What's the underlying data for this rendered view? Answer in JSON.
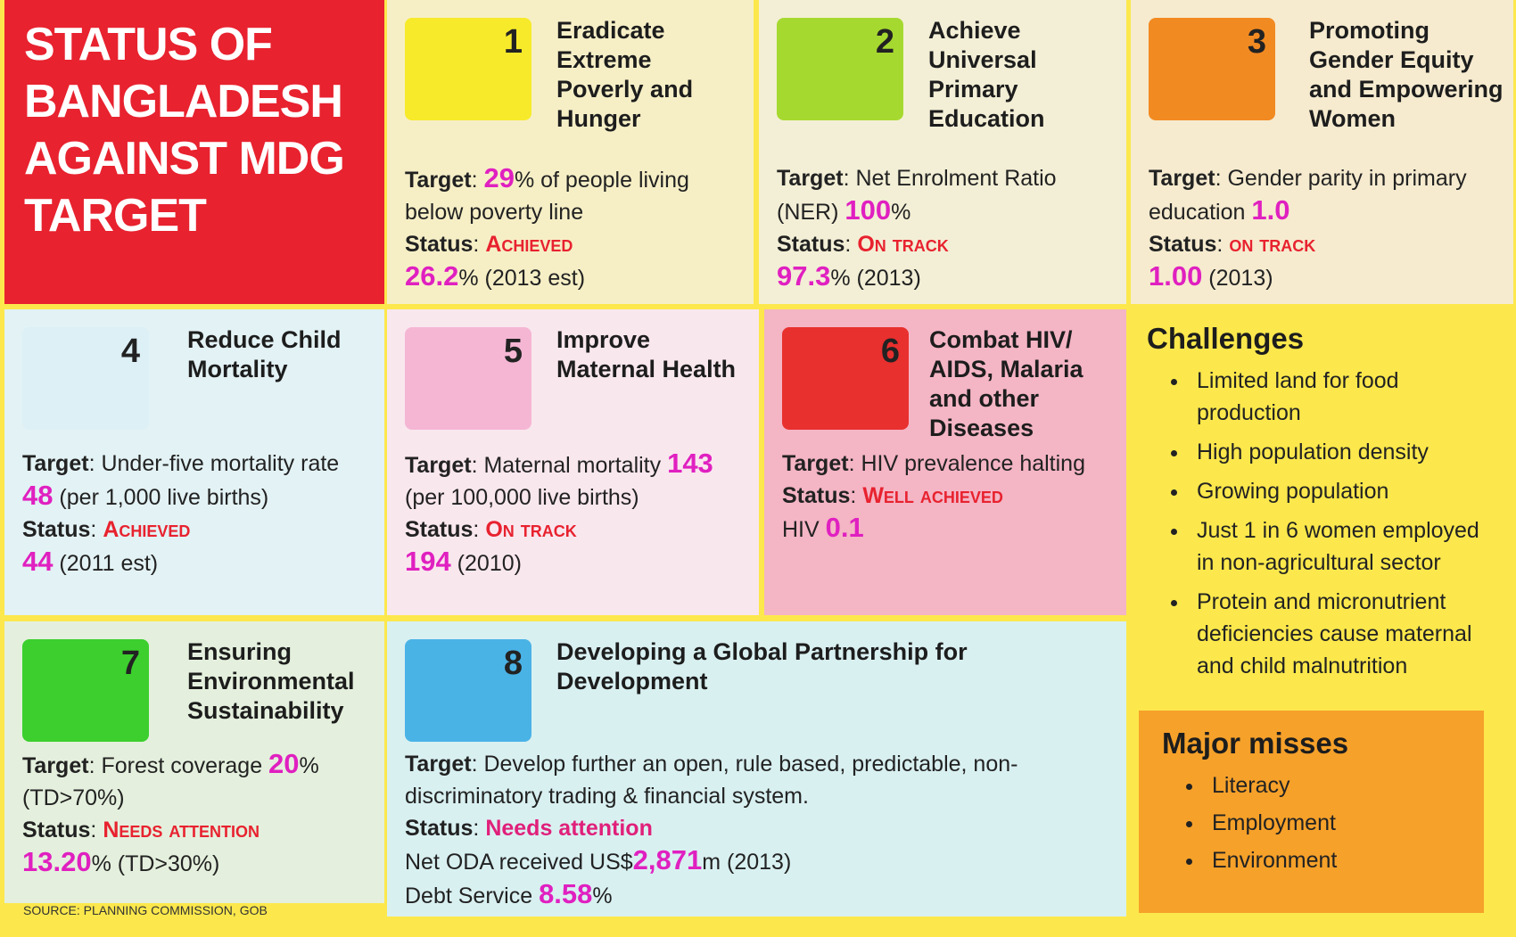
{
  "header": {
    "title": "STATUS OF BANGLADESH AGAINST MDG TARGET"
  },
  "goals": [
    {
      "number": 1,
      "title": "Eradicate Extreme Poverly and Hunger",
      "target": [
        "Target",
        ": ",
        "29",
        "% of people living below poverty line"
      ],
      "status": [
        "Status",
        ": ",
        "Achieved"
      ],
      "result": [
        [
          "26.2",
          "% (2013 est)"
        ]
      ]
    },
    {
      "number": 2,
      "title": "Achieve Universal Primary Education",
      "target": [
        "Target",
        ": Net Enrolment Ratio (NER) ",
        "100",
        "%"
      ],
      "status": [
        "Status",
        ": ",
        "On track"
      ],
      "result": [
        [
          "97.3",
          "% (2013)"
        ]
      ]
    },
    {
      "number": 3,
      "title": "Promoting Gender Equity and Empowering Women",
      "target": [
        "Target",
        ": Gender parity in primary education ",
        "1.0"
      ],
      "status": [
        "Status",
        ": ",
        "on track"
      ],
      "result": [
        [
          "1.00",
          " (2013)"
        ]
      ]
    },
    {
      "number": 4,
      "title": "Reduce Child Mortality",
      "target": [
        "Target",
        ": Under-five mortality rate ",
        "48",
        " (per 1,000 live births)"
      ],
      "status": [
        "Status",
        ": ",
        "Achieved"
      ],
      "result": [
        [
          "44",
          " (2011 est)"
        ]
      ]
    },
    {
      "number": 5,
      "title": "Improve Maternal Health",
      "target": [
        "Target",
        ": Maternal mortality ",
        "143",
        " (per 100,000 live births)"
      ],
      "status": [
        "Status",
        ": ",
        "On track"
      ],
      "result": [
        [
          "194",
          " (2010)"
        ]
      ]
    },
    {
      "number": 6,
      "title": "Combat HIV/ AIDS, Malaria and other Diseases",
      "target": [
        "Target",
        ": HIV prevalence halting"
      ],
      "status": [
        "Status",
        ": ",
        "Well achieved"
      ],
      "result": [
        [
          "HIV ",
          "0.1"
        ]
      ]
    },
    {
      "number": 7,
      "title": "Ensuring Environmental Sustainability",
      "target": [
        "Target",
        ": Forest coverage ",
        "20",
        "% (TD>70%)"
      ],
      "status": [
        "Status",
        ": ",
        "Needs attention"
      ],
      "result": [
        [
          "13.20",
          "% (TD>30%)"
        ]
      ]
    },
    {
      "number": 8,
      "title": "Developing a Global Partnership for Development",
      "target": [
        "Target",
        ": Develop further an open, rule based, predictable, non-discriminatory trading & financial system."
      ],
      "status": [
        "Status",
        ": ",
        "Needs attention"
      ],
      "result": [
        [
          "Net ODA received US$",
          "2,871",
          "m (2013)"
        ],
        [
          "Debt Service ",
          "8.58",
          "%"
        ]
      ]
    }
  ],
  "challenges": {
    "title": "Challenges",
    "items": [
      "Limited land for food production",
      "High population density",
      "Growing population",
      "Just 1 in 6 women employed in non-agricultural sector",
      "Protein and micronutrient deficiencies cause maternal and child malnutrition"
    ]
  },
  "major_misses": {
    "title": "Major misses",
    "items": [
      "Literacy",
      "Employment",
      "Environment"
    ]
  },
  "source": "SOURCE: PLANNING COMMISSION, GOB"
}
